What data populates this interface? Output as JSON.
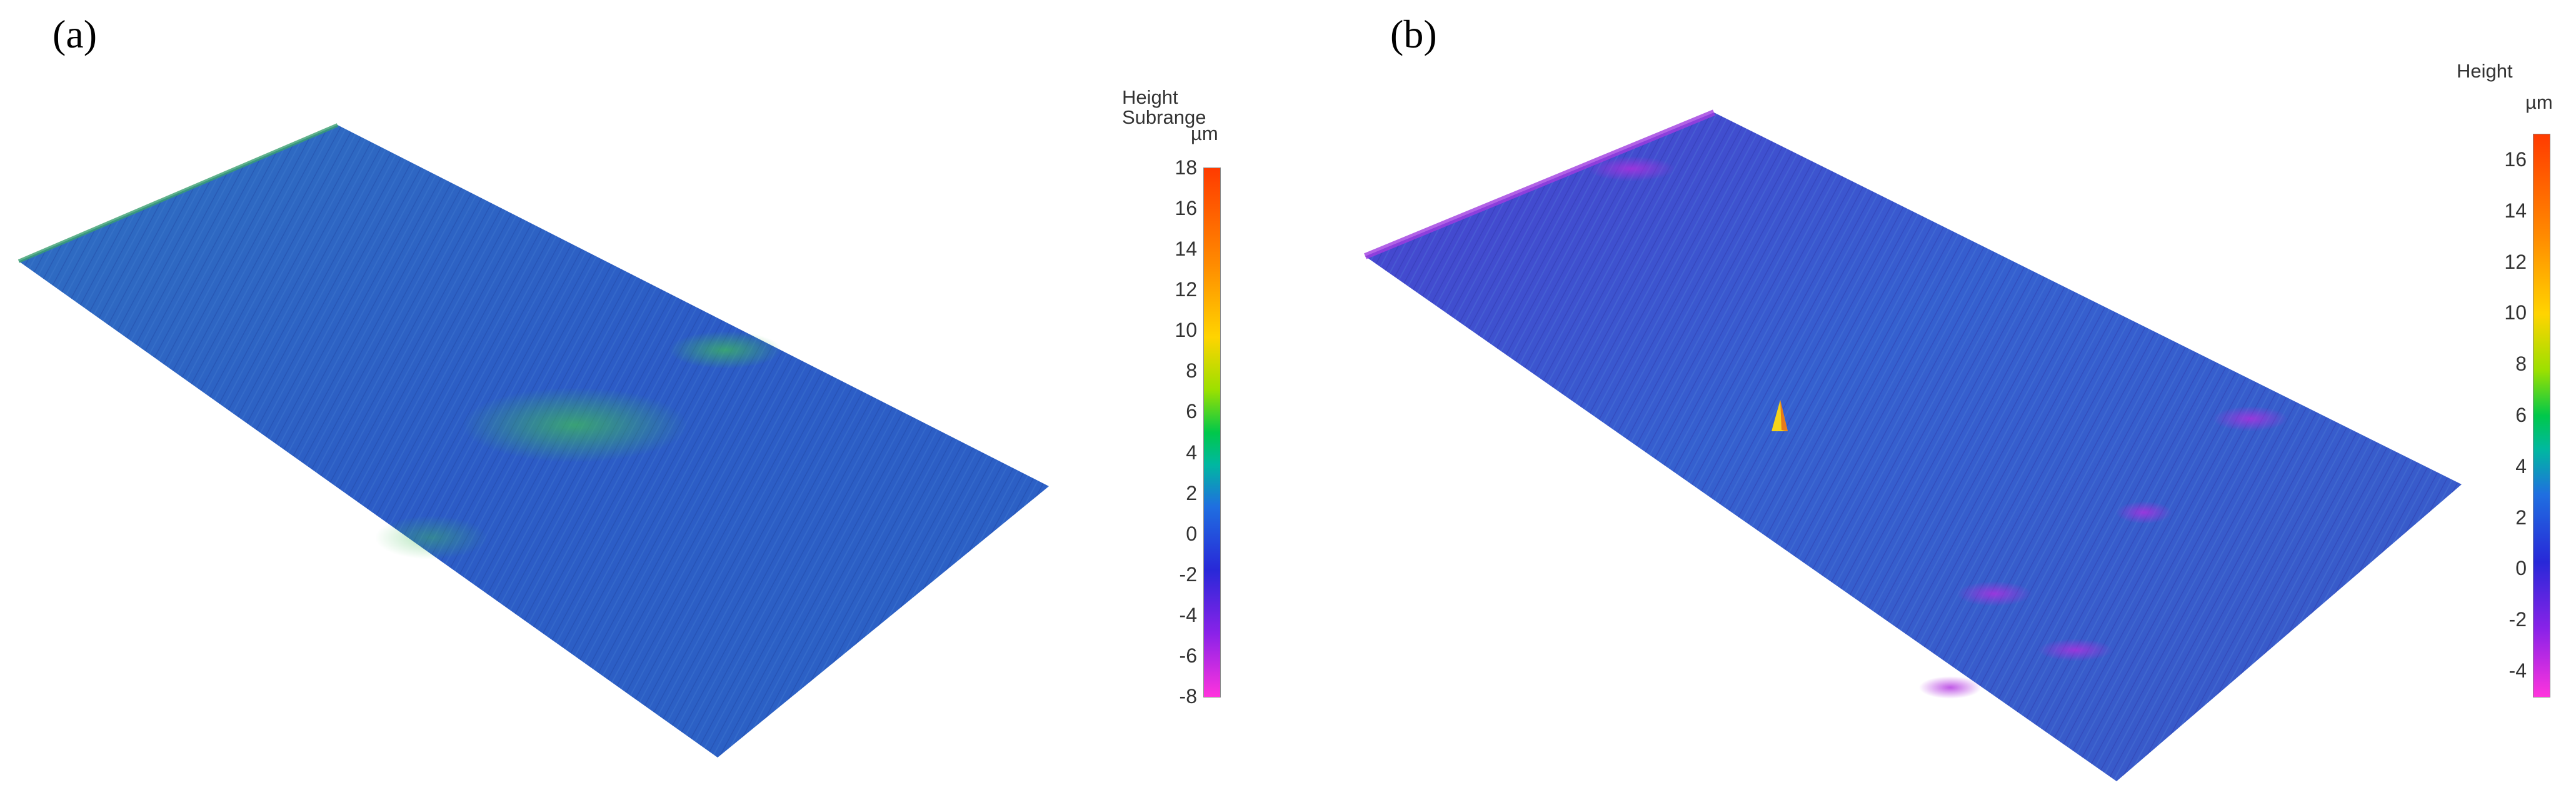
{
  "panels": [
    {
      "label": "(a)",
      "legend_title_lines": [
        "Height",
        "Subrange"
      ],
      "legend_unit": "µm",
      "color_scale": {
        "min": -8,
        "max": 18,
        "ticks": [
          "18",
          "16",
          "14",
          "12",
          "10",
          "8",
          "6",
          "4",
          "2",
          "0",
          "-2",
          "-4",
          "-6",
          "-8"
        ]
      },
      "colors": {
        "surface_base": "#2d5fc8",
        "surface_accent": "#3fa066",
        "scale_top": "#ff4400",
        "scale_bottom": "#ff33dd"
      }
    },
    {
      "label": "(b)",
      "legend_title_lines": [
        "Height"
      ],
      "legend_unit": "µm",
      "color_scale": {
        "min": -5,
        "max": 17,
        "ticks": [
          "16",
          "14",
          "12",
          "10",
          "8",
          "6",
          "4",
          "2",
          "0",
          "-2",
          "-4"
        ]
      },
      "colors": {
        "surface_base": "#3a4fd0",
        "surface_accent": "#8a2fd8",
        "scale_top": "#ff4400",
        "scale_bottom": "#ff33dd"
      }
    }
  ]
}
